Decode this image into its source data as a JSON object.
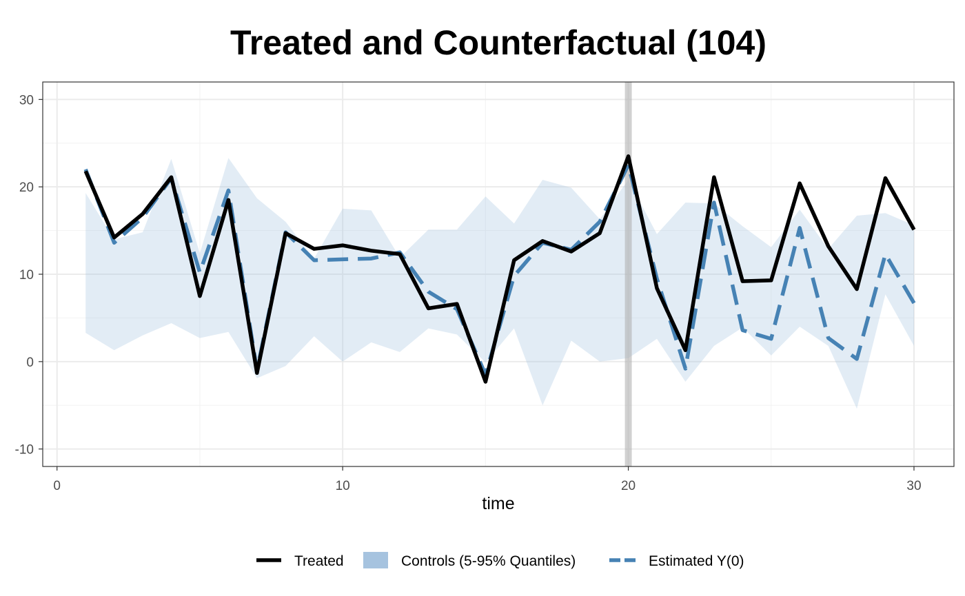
{
  "chart_data": {
    "type": "line",
    "title": "Treated and Counterfactual (104)",
    "xlabel": "time",
    "ylabel": "",
    "xlim": [
      -0.5,
      31.4
    ],
    "ylim": [
      -12,
      32
    ],
    "x_ticks": [
      0,
      10,
      20,
      30
    ],
    "y_ticks": [
      -10,
      0,
      10,
      20,
      30
    ],
    "grid": true,
    "treatment_start": 20,
    "legend_position": "bottom",
    "x": [
      1,
      2,
      3,
      4,
      5,
      6,
      7,
      8,
      9,
      10,
      11,
      12,
      13,
      14,
      15,
      16,
      17,
      18,
      19,
      20,
      21,
      22,
      23,
      24,
      25,
      26,
      27,
      28,
      29,
      30
    ],
    "series": [
      {
        "name": "Treated",
        "kind": "line",
        "color": "#000000",
        "values": [
          21.8,
          14.2,
          16.9,
          21.1,
          7.5,
          18.5,
          -1.3,
          14.7,
          12.9,
          13.3,
          12.7,
          12.3,
          6.1,
          6.6,
          -2.3,
          11.6,
          13.8,
          12.6,
          14.7,
          23.5,
          8.4,
          1.3,
          21.1,
          9.2,
          9.3,
          20.4,
          13.2,
          8.3,
          21.0,
          15.1
        ]
      },
      {
        "name": "Controls (5-95% Quantiles)",
        "kind": "band",
        "color": "#a6c3df",
        "lower": [
          3.3,
          1.3,
          3.0,
          4.4,
          2.7,
          3.4,
          -1.9,
          -0.5,
          2.9,
          0.0,
          2.2,
          1.1,
          3.8,
          3.1,
          -0.1,
          3.8,
          -5.0,
          2.4,
          0.0,
          0.4,
          2.6,
          -2.3,
          1.8,
          3.9,
          0.7,
          4.0,
          1.8,
          -5.4,
          7.7,
          1.8
        ],
        "upper": [
          19.3,
          14.0,
          14.8,
          23.2,
          12.4,
          23.3,
          18.7,
          16.0,
          11.8,
          17.5,
          17.3,
          11.9,
          15.1,
          15.1,
          18.9,
          15.8,
          20.8,
          19.9,
          16.3,
          20.8,
          14.6,
          18.2,
          18.1,
          15.5,
          13.1,
          17.4,
          12.9,
          16.7,
          17.0,
          15.6
        ]
      },
      {
        "name": "Estimated Y(0)",
        "kind": "dashed",
        "color": "#4682b4",
        "values": [
          22.0,
          13.6,
          16.5,
          21.0,
          10.2,
          19.6,
          -1.0,
          14.8,
          11.6,
          11.7,
          11.8,
          12.5,
          8.0,
          6.0,
          -1.5,
          9.8,
          13.6,
          12.8,
          16.0,
          22.5,
          9.5,
          -0.8,
          18.2,
          3.6,
          2.6,
          15.3,
          2.7,
          0.3,
          12.3,
          6.7
        ]
      }
    ]
  }
}
